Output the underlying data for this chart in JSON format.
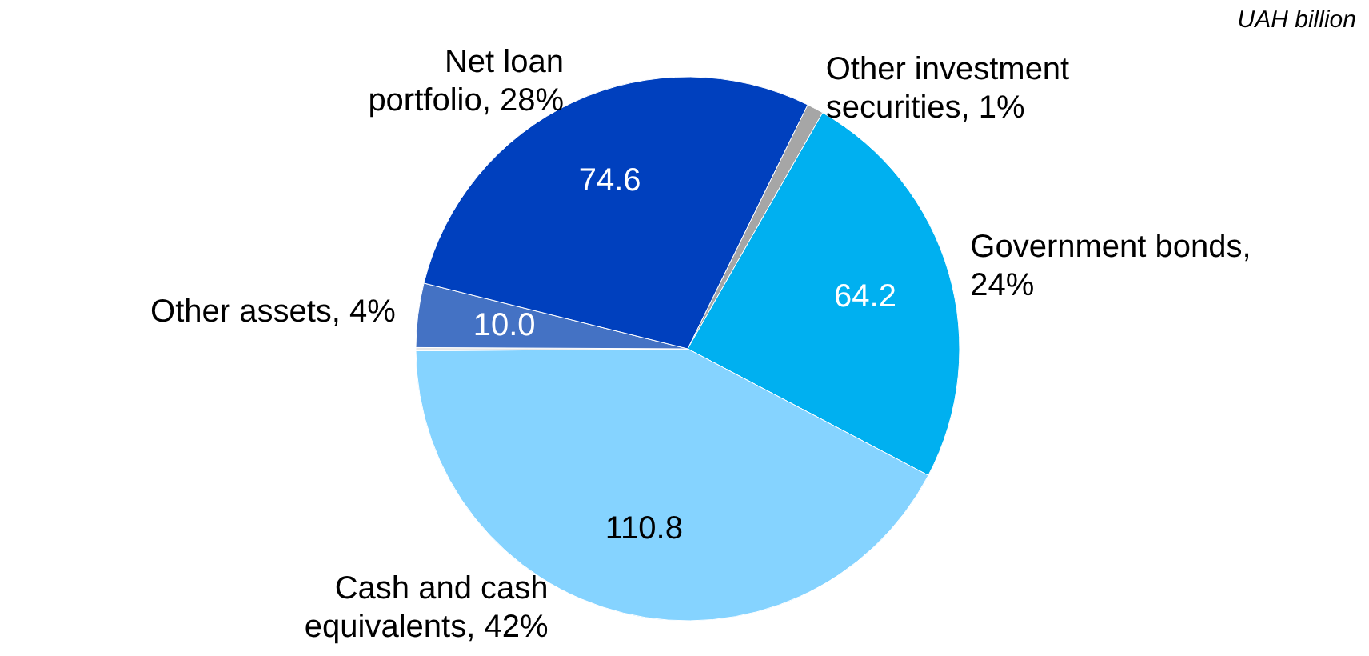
{
  "chart_data": {
    "type": "pie",
    "categories": [
      "Other investment securities, 1%",
      "Government bonds, 24%",
      "Cash and cash equivalents, 42%",
      null,
      "Other assets, 4%",
      "Net loan portfolio, 28%"
    ],
    "values": [
      2.6,
      64.2,
      110.8,
      0.5,
      10.0,
      74.6
    ],
    "colors": [
      "#a6a6a6",
      "#00b0f0",
      "#85d3ff",
      "#e6e6e6",
      "#4472c4",
      "#0040be"
    ],
    "value_labels": [
      null,
      "64.2",
      "110.8",
      null,
      "10.0",
      "74.6"
    ],
    "annotations": [
      "UAH billion"
    ]
  }
}
